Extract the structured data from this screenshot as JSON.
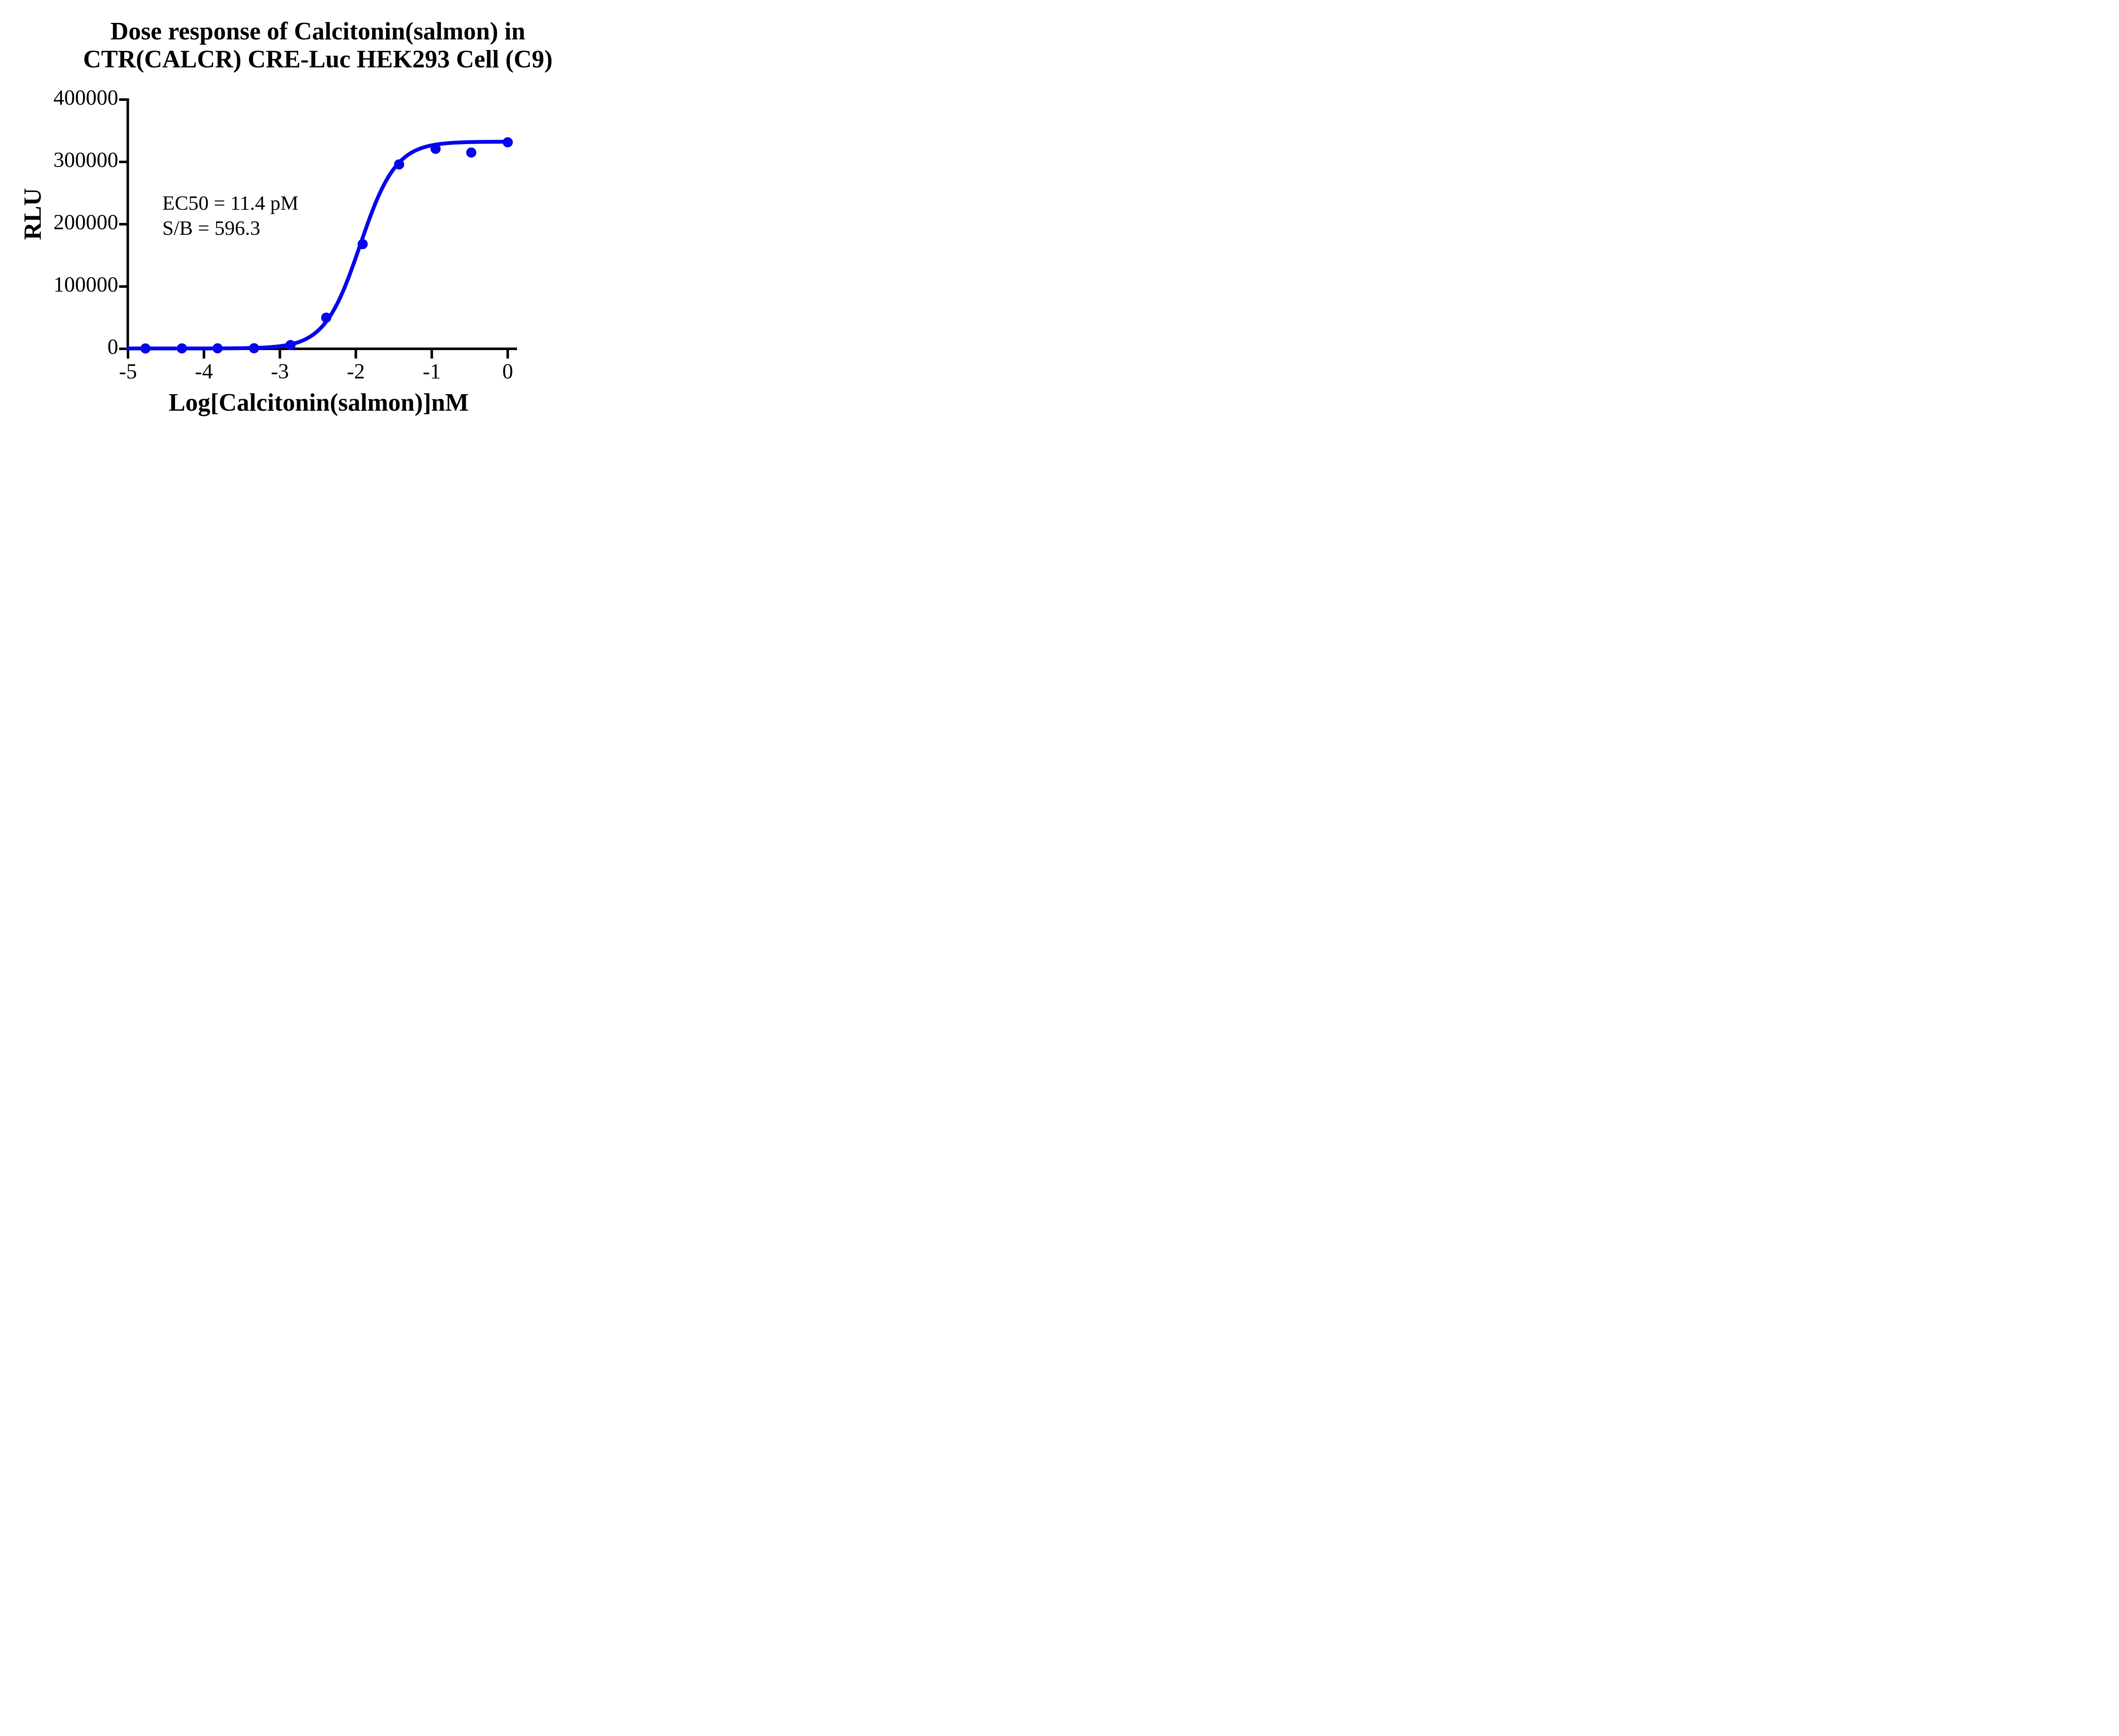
{
  "figure": {
    "title_lines": [
      "Dose response of Calcitonin(salmon) in",
      "CTR(CALCR) CRE-Luc HEK293 Cell (C9)"
    ],
    "background_color": "#ffffff",
    "axis_color": "#000000",
    "text_color": "#000000"
  },
  "chart_data": {
    "type": "scatter",
    "title": "Dose response of Calcitonin(salmon) in CTR(CALCR) CRE-Luc HEK293 Cell (C9)",
    "xlabel": "Log[Calcitonin(salmon)]nM",
    "ylabel": "RLU",
    "xlim": [
      -5,
      0.12
    ],
    "ylim": [
      0,
      400000
    ],
    "x_ticks": [
      -5,
      -4,
      -3,
      -2,
      -1,
      0
    ],
    "x_tick_labels": [
      "-5",
      "-4",
      "-3",
      "-2",
      "-1",
      "0"
    ],
    "y_ticks": [
      0,
      100000,
      200000,
      300000,
      400000
    ],
    "y_tick_labels": [
      "0",
      "100000",
      "200000",
      "300000",
      "400000"
    ],
    "grid": false,
    "legend": "none",
    "annotations": [
      "EC50 = 11.4 pM",
      "S/B = 596.3"
    ],
    "series": [
      {
        "name": "Calcitonin(salmon)",
        "color": "#0505ee",
        "marker": "circle",
        "points": [
          {
            "x": -4.77,
            "y": 600
          },
          {
            "x": -4.29,
            "y": 650
          },
          {
            "x": -3.82,
            "y": 800
          },
          {
            "x": -3.34,
            "y": 950
          },
          {
            "x": -2.86,
            "y": 6000
          },
          {
            "x": -2.39,
            "y": 50000
          },
          {
            "x": -1.91,
            "y": 168000
          },
          {
            "x": -1.43,
            "y": 296000
          },
          {
            "x": -0.95,
            "y": 321000
          },
          {
            "x": -0.48,
            "y": 315000
          },
          {
            "x": 0.0,
            "y": 331500
          }
        ],
        "fit_curve": {
          "model": "4PL",
          "bottom": 560,
          "top": 332500,
          "log_ec50": -1.943,
          "hill_slope": 1.85
        }
      }
    ],
    "results": {
      "ec50": "11.4 pM",
      "s_over_b": "596.3"
    }
  }
}
